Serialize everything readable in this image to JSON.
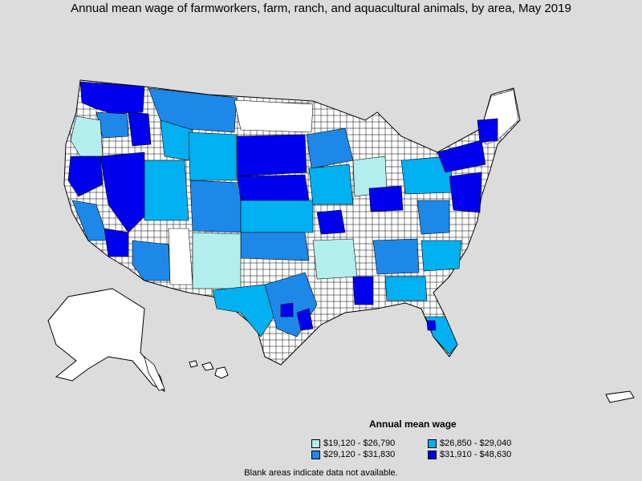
{
  "title": "Annual mean wage of farmworkers, farm, ranch, and aquacultural animals, by area, May 2019",
  "legend": {
    "title": "Annual mean wage",
    "items": [
      {
        "label": "$19,120 - $26,790",
        "color": "#b3eeee"
      },
      {
        "label": "$26,850 - $29,040",
        "color": "#00b0f0"
      },
      {
        "label": "$29,120 - $31,830",
        "color": "#1e88e8"
      },
      {
        "label": "$31,910 - $48,630",
        "color": "#0000ee"
      }
    ]
  },
  "footnote": "Blank areas indicate data not available.",
  "colors": {
    "background": "#dcdcdc",
    "no_data": "#ffffff",
    "border": "#000000"
  }
}
